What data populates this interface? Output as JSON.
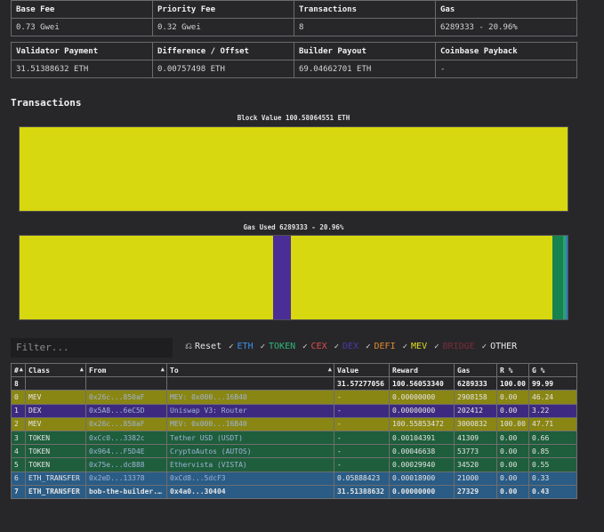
{
  "summary": {
    "row1_headers": [
      "Base Fee",
      "Priority Fee",
      "Transactions",
      "Gas"
    ],
    "row1_values": [
      "0.73 Gwei",
      "0.32 Gwei",
      "8",
      "6289333 - 20.96%"
    ],
    "row2_headers": [
      "Validator Payment",
      "Difference / Offset",
      "Builder Payout",
      "Coinbase Payback"
    ],
    "row2_values": [
      "31.51388632 ETH",
      "0.00757498 ETH",
      "69.04662701 ETH",
      "-"
    ]
  },
  "section_title": "Transactions",
  "block_value_chart": {
    "title": "Block Value 100.58064551 ETH",
    "segments": [
      {
        "color": "#d8d810",
        "share": 1.0
      }
    ]
  },
  "gas_used_chart": {
    "title": "Gas Used 6289333 - 20.96%",
    "segments": [
      {
        "color": "#d8d810",
        "share": 0.4624
      },
      {
        "color": "#4b2d96",
        "share": 0.0322
      },
      {
        "color": "#d8d810",
        "share": 0.4771
      },
      {
        "color": "#16824f",
        "share": 0.02
      },
      {
        "color": "#2ea06f",
        "share": 0.005
      },
      {
        "color": "#2e7fc0",
        "share": 0.0033
      }
    ]
  },
  "filter": {
    "placeholder": "Filter...",
    "reset_label": "Reset",
    "categories": [
      {
        "label": "ETH",
        "color": "#3a8ee6"
      },
      {
        "label": "TOKEN",
        "color": "#2fb67a"
      },
      {
        "label": "CEX",
        "color": "#e04a4a"
      },
      {
        "label": "DEX",
        "color": "#4a3aa8"
      },
      {
        "label": "DEFI",
        "color": "#e0892c"
      },
      {
        "label": "MEV",
        "color": "#dede20"
      },
      {
        "label": "BRIDGE",
        "color": "#7a2c38"
      },
      {
        "label": "OTHER",
        "color": "#e8e8e8"
      }
    ]
  },
  "tx_table": {
    "columns": [
      "#",
      "Class",
      "From",
      "To",
      "Value",
      "Reward",
      "Gas",
      "R %",
      "G %"
    ],
    "sortable": [
      true,
      true,
      true,
      true,
      false,
      false,
      false,
      false,
      false
    ],
    "total": [
      "8",
      "",
      "",
      "",
      "31.57277056",
      "100.56053340",
      "6289333",
      "100.00",
      "99.99"
    ],
    "rows": [
      {
        "cells": [
          "0",
          "MEV",
          "0x26c...850aF",
          "MEV: 0x000...16B40",
          "-",
          "0.00000000",
          "2908158",
          "0.00",
          "46.24"
        ],
        "bg": "#8a8614",
        "bold": false
      },
      {
        "cells": [
          "1",
          "DEX",
          "0x5A8...6eC5D",
          "Uniswap V3: Router",
          "-",
          "0.00000000",
          "202412",
          "0.00",
          "3.22"
        ],
        "bg": "#3d2a80",
        "bold": false
      },
      {
        "cells": [
          "2",
          "MEV",
          "0x26c...850aF",
          "MEV: 0x000...16B40",
          "-",
          "100.55853472",
          "3000832",
          "100.00",
          "47.71"
        ],
        "bg": "#8a8614",
        "bold": false
      },
      {
        "cells": [
          "3",
          "TOKEN",
          "0xCc0...3382c",
          "Tether USD (USDT)",
          "-",
          "0.00104391",
          "41309",
          "0.00",
          "0.66"
        ],
        "bg": "#1e5e3c",
        "bold": false
      },
      {
        "cells": [
          "4",
          "TOKEN",
          "0x964...F5D4E",
          "CryptoAutos (AUTOS)",
          "-",
          "0.00046638",
          "53773",
          "0.00",
          "0.85"
        ],
        "bg": "#1e5e3c",
        "bold": false
      },
      {
        "cells": [
          "5",
          "TOKEN",
          "0x75e...dcB88",
          "Ethervista (VISTA)",
          "-",
          "0.00029940",
          "34520",
          "0.00",
          "0.55"
        ],
        "bg": "#1e5e3c",
        "bold": false
      },
      {
        "cells": [
          "6",
          "ETH_TRANSFER",
          "0x2eD...13378",
          "0xCd8...5dcF3",
          "0.05888423",
          "0.00018900",
          "21000",
          "0.00",
          "0.33"
        ],
        "bg": "#2a5c86",
        "bold": false
      },
      {
        "cells": [
          "7",
          "ETH_TRANSFER",
          "bob-the-builder...",
          "0x4a0...30404",
          "31.51388632",
          "0.00000000",
          "27329",
          "0.00",
          "0.43"
        ],
        "bg": "#2a5c86",
        "bold": true
      }
    ]
  }
}
